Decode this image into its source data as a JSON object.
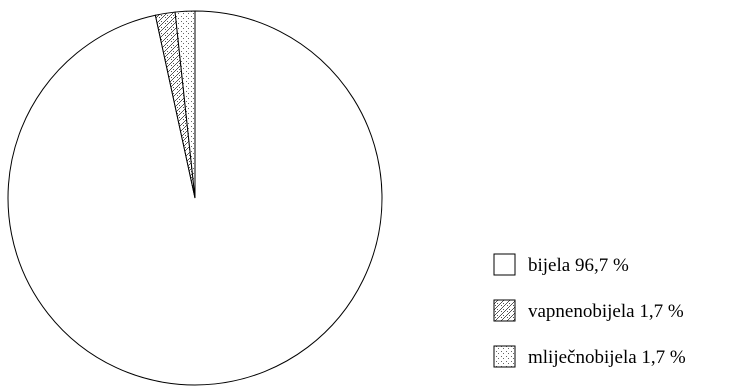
{
  "chart_data": {
    "type": "pie",
    "title": "",
    "slices": [
      {
        "label": "bijela",
        "value": 96.7,
        "display": "bijela 96,7 %",
        "pattern": "none"
      },
      {
        "label": "vapnenobijela",
        "value": 1.7,
        "display": "vapnenobijela 1,7 %",
        "pattern": "diagonal-dots"
      },
      {
        "label": "mliječnobijela",
        "value": 1.7,
        "display": "mliječnobijela 1,7 %",
        "pattern": "sparse-dots"
      }
    ],
    "start_angle_deg": 0,
    "direction": "counterclockwise-for-small-slices",
    "legend_position": "right"
  },
  "colors": {
    "outline": "#000000",
    "fill": "#ffffff",
    "pattern_ink": "#555555"
  }
}
